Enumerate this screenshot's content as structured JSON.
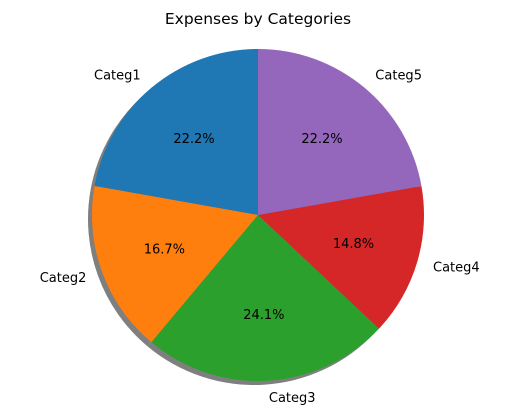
{
  "chart_data": {
    "type": "pie",
    "title": "Expenses by Categories",
    "categories": [
      "Categ1",
      "Categ2",
      "Categ3",
      "Categ4",
      "Categ5"
    ],
    "values": [
      22.2,
      16.7,
      24.1,
      14.8,
      22.2
    ],
    "value_labels": [
      "22.2%",
      "16.7%",
      "24.1%",
      "14.8%",
      "22.2%"
    ],
    "colors": [
      "#1f77b4",
      "#ff7f0e",
      "#2ca02c",
      "#d62728",
      "#9467bd"
    ],
    "start_angle_deg": 90,
    "direction": "counterclockwise",
    "shadow": true,
    "legend": "none"
  }
}
